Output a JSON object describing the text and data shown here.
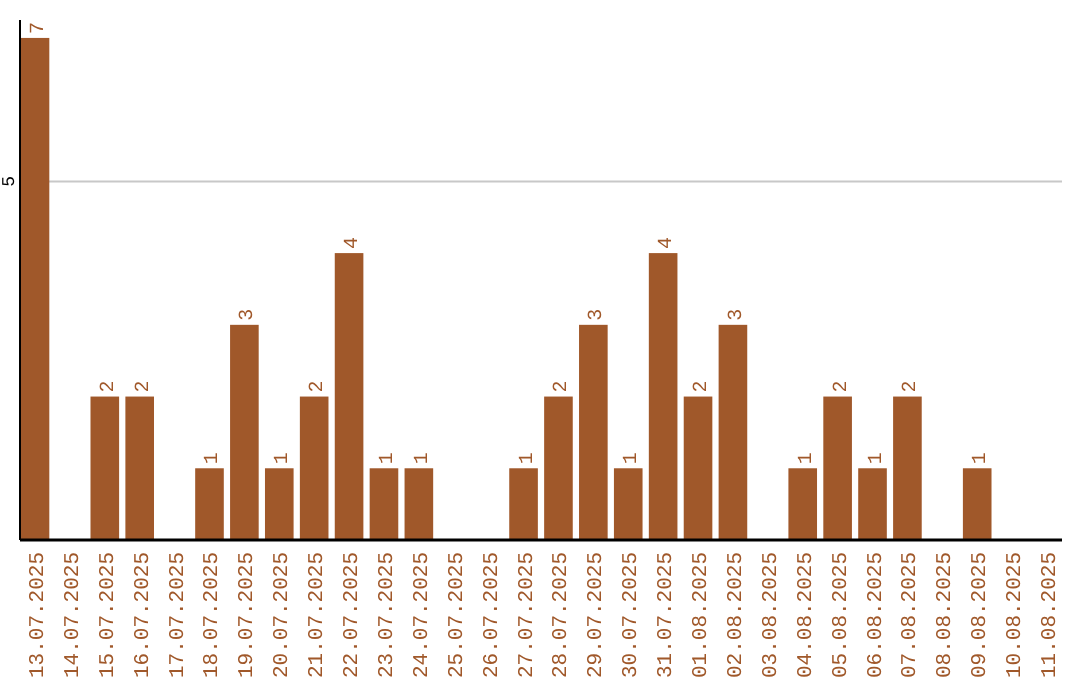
{
  "chart_data": {
    "type": "bar",
    "categories": [
      "13.07.2025",
      "14.07.2025",
      "15.07.2025",
      "16.07.2025",
      "17.07.2025",
      "18.07.2025",
      "19.07.2025",
      "20.07.2025",
      "21.07.2025",
      "22.07.2025",
      "23.07.2025",
      "24.07.2025",
      "25.07.2025",
      "26.07.2025",
      "27.07.2025",
      "28.07.2025",
      "29.07.2025",
      "30.07.2025",
      "31.07.2025",
      "01.08.2025",
      "02.08.2025",
      "03.08.2025",
      "04.08.2025",
      "05.08.2025",
      "06.08.2025",
      "07.08.2025",
      "08.08.2025",
      "09.08.2025",
      "10.08.2025",
      "11.08.2025"
    ],
    "values": [
      7,
      0,
      2,
      2,
      0,
      1,
      3,
      1,
      2,
      4,
      1,
      1,
      0,
      0,
      1,
      2,
      3,
      1,
      4,
      2,
      3,
      0,
      1,
      2,
      1,
      2,
      0,
      1,
      0,
      0
    ],
    "value_labels": [
      "7",
      null,
      "2",
      "2",
      null,
      "1",
      "3",
      "1",
      "2",
      "4",
      "1",
      "1",
      null,
      null,
      "1",
      "2",
      "3",
      "1",
      "4",
      "2",
      "3",
      null,
      "1",
      "2",
      "1",
      "2",
      null,
      "1",
      null,
      null
    ],
    "color": "#a0582a",
    "ylim": [
      0,
      7.25
    ],
    "yticks": [
      5
    ],
    "grid": "y"
  }
}
